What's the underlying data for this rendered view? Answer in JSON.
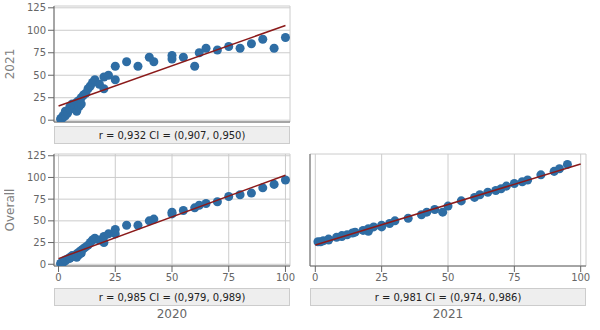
{
  "chart_data": [
    {
      "type": "scatter",
      "y_label": "2021",
      "annotation": "r = 0,932  CI = (0,907, 0,950)",
      "series": [
        {
          "type": "scatter",
          "color": "#2e6da4",
          "x": [
            1,
            1,
            2,
            2,
            3,
            3,
            4,
            5,
            5,
            6,
            7,
            8,
            8,
            9,
            9,
            10,
            10,
            11,
            12,
            13,
            14,
            15,
            16,
            18,
            20,
            20,
            22,
            25,
            25,
            30,
            35,
            40,
            42,
            50,
            50,
            55,
            60,
            62,
            65,
            70,
            75,
            80,
            85,
            90,
            95,
            100
          ],
          "values": [
            1,
            2,
            3,
            5,
            5,
            10,
            8,
            15,
            12,
            18,
            14,
            20,
            10,
            22,
            15,
            25,
            18,
            28,
            30,
            35,
            38,
            42,
            45,
            40,
            48,
            35,
            50,
            60,
            45,
            65,
            60,
            70,
            65,
            68,
            72,
            70,
            60,
            75,
            80,
            78,
            82,
            80,
            85,
            90,
            80,
            92
          ]
        },
        {
          "type": "line",
          "color": "#8b1a1a",
          "x": [
            0,
            100
          ],
          "values": [
            15.846,
            105.334
          ]
        }
      ],
      "xlim": [
        -2,
        102
      ],
      "ylim": [
        -2,
        127
      ],
      "xticks": [
        0,
        25,
        50,
        75,
        100
      ],
      "yticks": [
        0,
        25,
        50,
        75,
        100,
        125
      ],
      "grid": true,
      "tick_labels": "y"
    },
    {
      "type": "scatter",
      "y_label": "Overall",
      "x_label": "2020",
      "annotation": "r = 0,985  CI = (0,979, 0,989)",
      "series": [
        {
          "type": "scatter",
          "color": "#2e6da4",
          "x": [
            1,
            1,
            2,
            2,
            3,
            3,
            4,
            5,
            5,
            6,
            7,
            8,
            8,
            9,
            9,
            10,
            10,
            11,
            12,
            13,
            14,
            15,
            16,
            18,
            20,
            20,
            22,
            25,
            25,
            30,
            35,
            40,
            42,
            50,
            50,
            55,
            60,
            62,
            65,
            70,
            75,
            80,
            85,
            90,
            95,
            100
          ],
          "values": [
            1,
            1,
            2,
            3,
            4,
            5,
            6,
            8,
            7,
            10,
            9,
            12,
            8,
            14,
            11,
            16,
            13,
            18,
            20,
            22,
            25,
            28,
            30,
            28,
            32,
            25,
            35,
            40,
            35,
            45,
            45,
            50,
            52,
            58,
            60,
            62,
            65,
            68,
            70,
            72,
            78,
            80,
            82,
            88,
            92,
            97
          ]
        },
        {
          "type": "line",
          "color": "#8b1a1a",
          "x": [
            0,
            100
          ],
          "values": [
            6.5,
            102.537
          ]
        }
      ],
      "xlim": [
        -2,
        102
      ],
      "ylim": [
        -2,
        127
      ],
      "xticks": [
        0,
        25,
        50,
        75,
        100
      ],
      "yticks": [
        0,
        25,
        50,
        75,
        100,
        125
      ],
      "grid": true
    },
    {
      "type": "scatter",
      "x_label": "2021",
      "annotation": "r = 0,981  CI = (0,974, 0,986)",
      "series": [
        {
          "type": "scatter",
          "color": "#2e6da4",
          "x": [
            1,
            2,
            3,
            5,
            5,
            8,
            10,
            10,
            12,
            14,
            15,
            18,
            20,
            20,
            22,
            25,
            25,
            28,
            30,
            35,
            40,
            42,
            45,
            48,
            50,
            55,
            60,
            62,
            65,
            68,
            70,
            72,
            75,
            78,
            80,
            85,
            90,
            92,
            95
          ],
          "values": [
            1,
            1,
            2,
            3,
            4,
            6,
            8,
            7,
            9,
            11,
            12,
            14,
            16,
            13,
            18,
            20,
            18,
            22,
            25,
            28,
            32,
            35,
            38,
            35,
            42,
            48,
            52,
            55,
            58,
            60,
            62,
            65,
            68,
            70,
            72,
            78,
            82,
            85,
            90
          ]
        },
        {
          "type": "line",
          "color": "#8b1a1a",
          "x": [
            0,
            100
          ],
          "values": [
            -2.728,
            90.398
          ]
        }
      ],
      "xlim": [
        -2,
        102
      ],
      "ylim": [
        -27,
        102
      ],
      "xticks": [
        0,
        25,
        50,
        75,
        100
      ],
      "yticks": [
        -25,
        0,
        25,
        50,
        75,
        100
      ],
      "grid": true,
      "tick_labels": "x"
    }
  ]
}
